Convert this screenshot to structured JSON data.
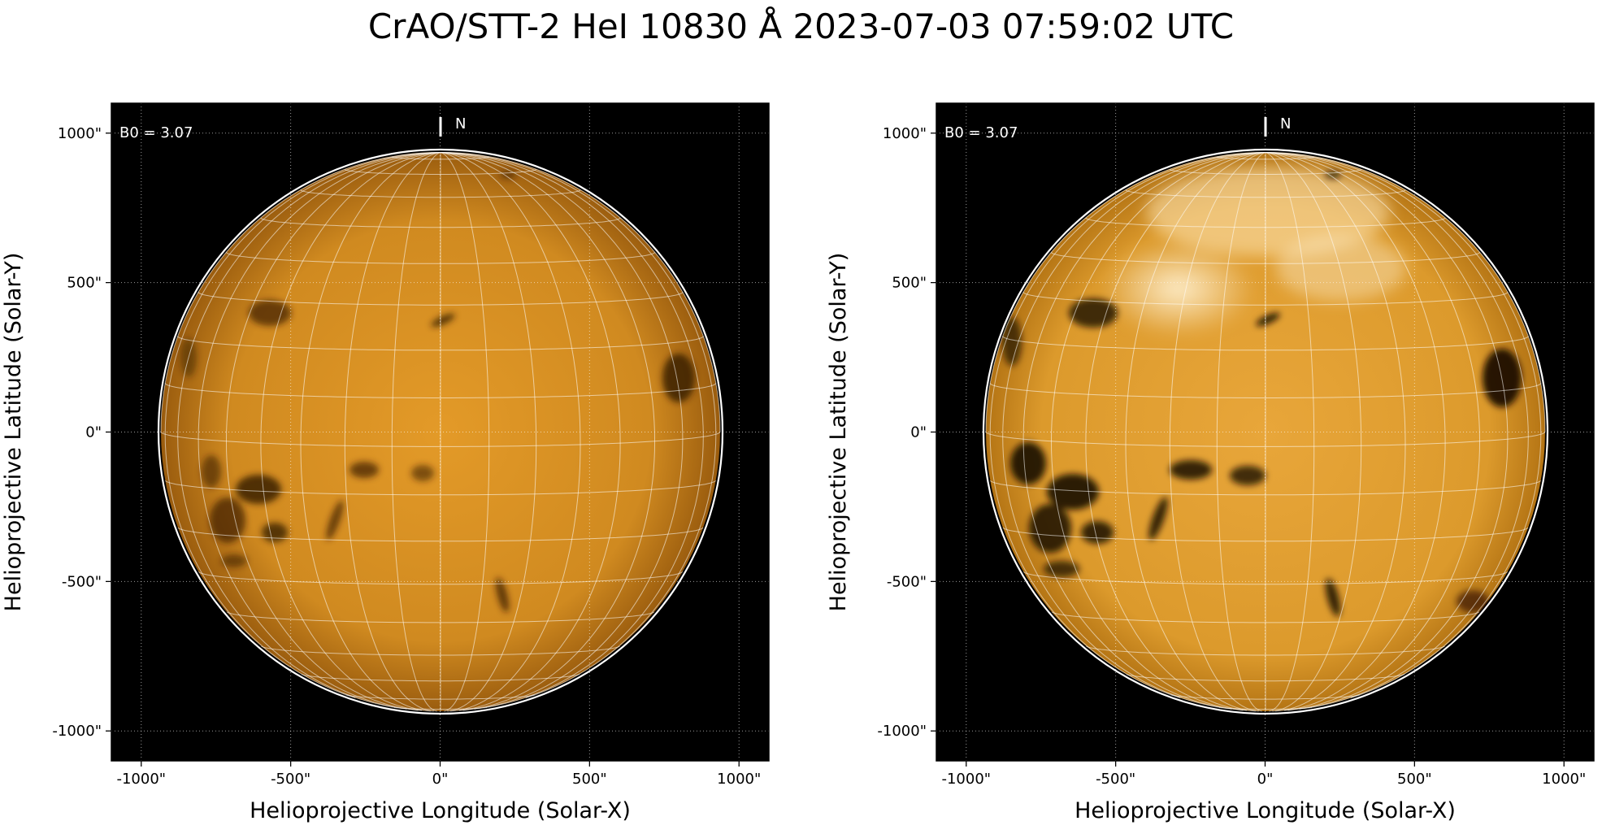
{
  "figure": {
    "title": "CrAO/STT-2 HeI 10830 Å 2023-07-03 07:59:02 UTC"
  },
  "axes": {
    "xlabel": "Helioprojective Longitude (Solar-X)",
    "ylabel": "Helioprojective Latitude (Solar-Y)",
    "xticks": [
      "-1000\"",
      "-500\"",
      "0\"",
      "500\"",
      "1000\""
    ],
    "yticks": [
      "1000\"",
      "500\"",
      "0\"",
      "-500\"",
      "-1000\""
    ],
    "tick_values": [
      -1000,
      -500,
      0,
      500,
      1000
    ],
    "range": [
      -1100,
      1100
    ]
  },
  "panels": [
    {
      "b0_label": "B0 = 3.07",
      "north_label": "N",
      "style": "normal",
      "colors": {
        "limb": "#a86a12",
        "center": "#dd9522",
        "dark": "#3a1e05"
      }
    },
    {
      "b0_label": "B0 = 3.07",
      "north_label": "N",
      "style": "enhanced",
      "colors": {
        "limb": "#c98a20",
        "center": "#f0b850",
        "dark": "#1a0a00"
      }
    }
  ],
  "colors": {
    "background": "#000000",
    "grid": "#ffffff",
    "limb_line": "#ffffff"
  }
}
